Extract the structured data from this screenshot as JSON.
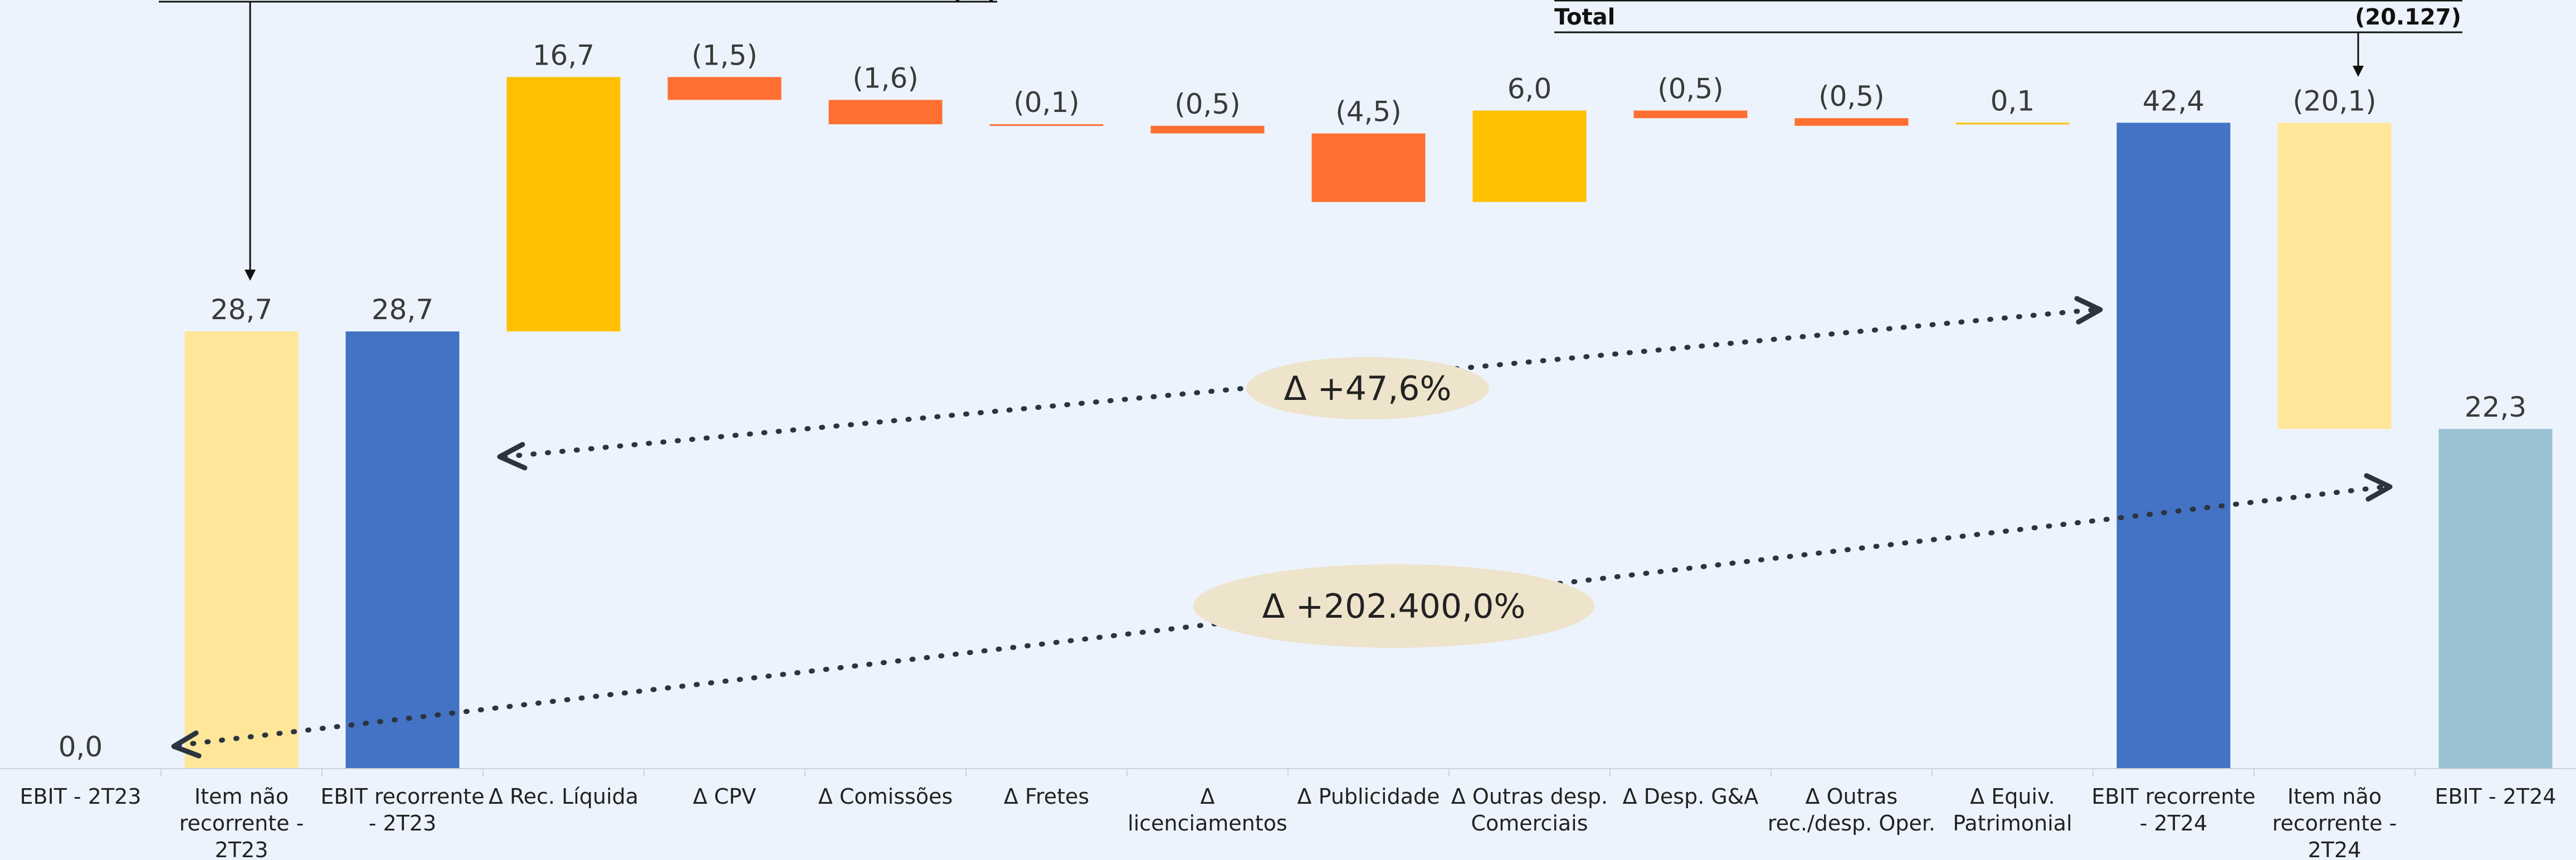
{
  "colors": {
    "background": "#ECF3FC",
    "recurrent": "#4472C4",
    "non_recurrent": "#FFE699",
    "increase": "#FFC000",
    "decrease": "#FF6F31",
    "final": "#9AC3D1",
    "annotation_pill": "#EEE3CB",
    "arrow": "#2B3440"
  },
  "annotations": {
    "top_left_note": "(...)",
    "total_label": "Total",
    "total_value": "(20.127)",
    "delta_recurrent": "Δ +47,6%",
    "delta_total": "Δ +202.400,0%"
  },
  "chart_data": {
    "type": "waterfall",
    "title": "",
    "xlabel": "",
    "ylabel": "",
    "ylim": [
      0,
      47
    ],
    "grid": false,
    "legend": "none",
    "categories": [
      "EBIT - 2T23",
      "Item não recorrente - 2T23",
      "EBIT recorrente - 2T23",
      "Δ Rec. Líquida",
      "Δ CPV",
      "Δ Comissões",
      "Δ Fretes",
      "Δ licenciamentos",
      "Δ Publicidade",
      "Δ Outras desp. Comerciais",
      "Δ Desp. G&A",
      "Δ Outras rec./desp. Oper.",
      "Δ Equiv. Patrimonial",
      "EBIT recorrente - 2T24",
      "Item não recorrente - 2T24",
      "EBIT - 2T24"
    ],
    "category_lines": [
      [
        "EBIT - 2T23"
      ],
      [
        "Item não",
        "recorrente -",
        "2T23"
      ],
      [
        "EBIT recorrente",
        "- 2T23"
      ],
      [
        "Δ Rec. Líquida"
      ],
      [
        "Δ CPV"
      ],
      [
        "Δ Comissões"
      ],
      [
        "Δ Fretes"
      ],
      [
        "Δ",
        "licenciamentos"
      ],
      [
        "Δ Publicidade"
      ],
      [
        "Δ Outras desp.",
        "Comerciais"
      ],
      [
        "Δ Desp. G&A"
      ],
      [
        "Δ Outras",
        "rec./desp. Oper."
      ],
      [
        "Δ Equiv.",
        "Patrimonial"
      ],
      [
        "EBIT recorrente",
        "- 2T24"
      ],
      [
        "Item não",
        "recorrente -",
        "2T24"
      ],
      [
        "EBIT - 2T24"
      ]
    ],
    "values": [
      0.0,
      28.7,
      28.7,
      16.7,
      -1.5,
      -1.6,
      -0.1,
      -0.5,
      -4.5,
      6.0,
      -0.5,
      -0.5,
      0.1,
      42.4,
      -20.1,
      22.3
    ],
    "labels": [
      "0,0",
      "28,7",
      "28,7",
      "16,7",
      "(1,5)",
      "(1,6)",
      "(0,1)",
      "(0,5)",
      "(4,5)",
      "6,0",
      "(0,5)",
      "(0,5)",
      "0,1",
      "42,4",
      "(20,1)",
      "22,3"
    ],
    "kinds": [
      "total",
      "nonrec",
      "total",
      "up",
      "down",
      "down",
      "down",
      "down",
      "down",
      "up",
      "down",
      "down",
      "up",
      "total",
      "nonrec",
      "final"
    ],
    "bar_base": [
      0,
      0,
      0,
      28.7,
      43.9,
      42.3,
      42.2,
      41.7,
      37.2,
      37.2,
      42.7,
      42.2,
      42.3,
      0,
      22.3,
      0
    ],
    "bar_top": [
      0,
      28.7,
      28.7,
      45.4,
      45.4,
      43.9,
      42.3,
      42.2,
      41.7,
      43.2,
      43.2,
      42.7,
      42.4,
      42.4,
      42.4,
      22.3
    ]
  }
}
